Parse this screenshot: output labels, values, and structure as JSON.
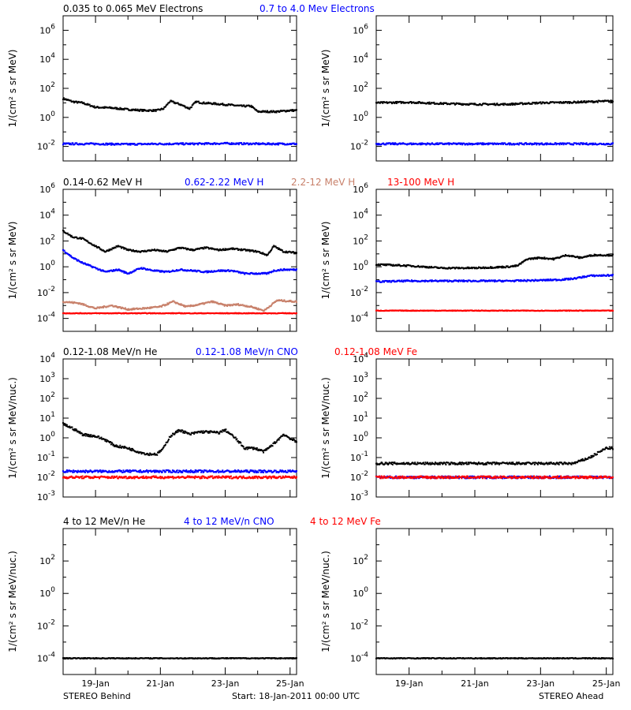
{
  "footer": {
    "left": "STEREO Behind",
    "center": "Start: 18-Jan-2011 00:00 UTC",
    "right": "STEREO Ahead"
  },
  "x_axis": {
    "range_days": [
      18,
      25.2
    ],
    "ticks": [
      {
        "day": 19,
        "label": "19-Jan"
      },
      {
        "day": 21,
        "label": "21-Jan"
      },
      {
        "day": 23,
        "label": "23-Jan"
      },
      {
        "day": 25,
        "label": "25-Jan"
      }
    ]
  },
  "colors": {
    "black": "#000000",
    "blue": "#0000ff",
    "tan": "#c8806a",
    "red": "#ff0000"
  },
  "chart_data": [
    {
      "id": "electrons",
      "type": "scatter",
      "log_y": true,
      "ylabel": "1/(cm² s sr MeV)",
      "ylim_exp": [
        -3,
        7
      ],
      "yticks": [
        {
          "exp": -2,
          "label_base": "10",
          "label_exp": "-2"
        },
        {
          "exp": 0,
          "label_base": "10",
          "label_exp": "0"
        },
        {
          "exp": 2,
          "label_base": "10",
          "label_exp": "2"
        },
        {
          "exp": 4,
          "label_base": "10",
          "label_exp": "4"
        },
        {
          "exp": 6,
          "label_base": "10",
          "label_exp": "6"
        }
      ],
      "legend": [
        {
          "text": "0.035 to 0.065 MeV Electrons",
          "color": "#000000"
        },
        {
          "text": "0.7 to 4.0 Mev Electrons",
          "color": "#0000ff"
        }
      ],
      "behind": [
        {
          "color": "#000000",
          "x": [
            18.0,
            18.3,
            18.6,
            19.0,
            19.5,
            20.0,
            20.5,
            20.9,
            21.1,
            21.3,
            21.6,
            21.9,
            22.1,
            22.3,
            22.6,
            22.9,
            23.2,
            23.5,
            23.8,
            24.0,
            24.3,
            24.6,
            25.0,
            25.2
          ],
          "y": [
            20,
            12,
            10,
            5,
            4.5,
            3.5,
            3,
            3,
            4,
            13,
            8,
            4,
            12,
            10,
            9,
            8,
            7,
            6,
            6,
            2.5,
            2.5,
            2.5,
            3,
            3
          ]
        },
        {
          "color": "#0000ff",
          "x": [
            18.0,
            19.0,
            20.0,
            21.0,
            22.0,
            23.0,
            24.0,
            25.0,
            25.2
          ],
          "y": [
            0.015,
            0.015,
            0.014,
            0.015,
            0.015,
            0.016,
            0.015,
            0.015,
            0.015
          ]
        }
      ],
      "ahead": [
        {
          "color": "#000000",
          "x": [
            18.0,
            19.0,
            20.0,
            21.0,
            22.0,
            23.0,
            24.0,
            25.0,
            25.2
          ],
          "y": [
            10,
            11,
            9,
            8,
            8,
            10,
            11,
            13,
            13
          ]
        },
        {
          "color": "#0000ff",
          "x": [
            18.0,
            19.0,
            20.0,
            21.0,
            22.0,
            23.0,
            24.0,
            25.0,
            25.2
          ],
          "y": [
            0.015,
            0.015,
            0.015,
            0.015,
            0.015,
            0.015,
            0.015,
            0.015,
            0.015
          ]
        }
      ]
    },
    {
      "id": "protons",
      "type": "scatter",
      "log_y": true,
      "ylabel": "1/(cm² s sr MeV)",
      "ylim_exp": [
        -5,
        6
      ],
      "yticks": [
        {
          "exp": -4,
          "label_base": "10",
          "label_exp": "-4"
        },
        {
          "exp": -2,
          "label_base": "10",
          "label_exp": "-2"
        },
        {
          "exp": 0,
          "label_base": "10",
          "label_exp": "0"
        },
        {
          "exp": 2,
          "label_base": "10",
          "label_exp": "2"
        },
        {
          "exp": 4,
          "label_base": "10",
          "label_exp": "4"
        },
        {
          "exp": 6,
          "label_base": "10",
          "label_exp": "6"
        }
      ],
      "legend": [
        {
          "text": "0.14-0.62 MeV H",
          "color": "#000000"
        },
        {
          "text": "0.62-2.22 MeV H",
          "color": "#0000ff"
        },
        {
          "text": "2.2-12 MeV H",
          "color": "#c8806a"
        },
        {
          "text": "13-100 MeV H",
          "color": "#ff0000"
        }
      ],
      "behind": [
        {
          "color": "#000000",
          "x": [
            18.0,
            18.3,
            18.6,
            19.0,
            19.3,
            19.7,
            20.0,
            20.4,
            20.8,
            21.2,
            21.6,
            22.0,
            22.4,
            22.8,
            23.2,
            23.6,
            24.0,
            24.3,
            24.5,
            24.8,
            25.2
          ],
          "y": [
            600,
            200,
            150,
            40,
            15,
            40,
            20,
            15,
            20,
            15,
            30,
            20,
            30,
            20,
            25,
            20,
            15,
            8,
            40,
            15,
            12
          ]
        },
        {
          "color": "#0000ff",
          "x": [
            18.0,
            18.3,
            18.6,
            19.0,
            19.3,
            19.7,
            20.0,
            20.4,
            20.8,
            21.2,
            21.6,
            22.0,
            22.4,
            22.8,
            23.2,
            23.6,
            24.0,
            24.3,
            24.5,
            24.8,
            25.2
          ],
          "y": [
            20,
            5,
            2,
            0.8,
            0.4,
            0.6,
            0.3,
            0.8,
            0.5,
            0.4,
            0.6,
            0.5,
            0.4,
            0.5,
            0.5,
            0.3,
            0.3,
            0.3,
            0.5,
            0.6,
            0.6
          ]
        },
        {
          "color": "#c8806a",
          "x": [
            18.0,
            18.5,
            19.0,
            19.5,
            20.0,
            20.5,
            21.0,
            21.4,
            21.8,
            22.2,
            22.6,
            23.0,
            23.4,
            23.8,
            24.2,
            24.6,
            25.2
          ],
          "y": [
            0.002,
            0.0015,
            0.0006,
            0.001,
            0.0005,
            0.0006,
            0.0008,
            0.002,
            0.0008,
            0.0012,
            0.002,
            0.001,
            0.0012,
            0.0008,
            0.0004,
            0.0025,
            0.002
          ]
        },
        {
          "color": "#ff0000",
          "x": [
            18.0,
            19.0,
            20.0,
            21.0,
            22.0,
            23.0,
            24.0,
            25.0,
            25.2
          ],
          "y": [
            0.00025,
            0.00025,
            0.00025,
            0.00025,
            0.00025,
            0.00025,
            0.00025,
            0.00025,
            0.00025
          ]
        }
      ],
      "ahead": [
        {
          "color": "#000000",
          "x": [
            18.0,
            19.0,
            20.0,
            21.0,
            22.0,
            22.3,
            22.6,
            23.0,
            23.4,
            23.8,
            24.2,
            24.6,
            25.2
          ],
          "y": [
            1.5,
            1.2,
            0.8,
            0.8,
            1.0,
            1.2,
            4,
            5,
            4,
            8,
            5,
            8,
            8
          ]
        },
        {
          "color": "#0000ff",
          "x": [
            18.0,
            19.0,
            20.0,
            21.0,
            22.0,
            23.0,
            23.6,
            24.0,
            24.5,
            25.2
          ],
          "y": [
            0.07,
            0.08,
            0.08,
            0.08,
            0.08,
            0.09,
            0.1,
            0.12,
            0.2,
            0.22
          ]
        },
        {
          "color": "#ff0000",
          "x": [
            18.0,
            19.0,
            20.0,
            21.0,
            22.0,
            23.0,
            24.0,
            25.0,
            25.2
          ],
          "y": [
            0.0004,
            0.0004,
            0.0004,
            0.0004,
            0.0004,
            0.0004,
            0.0004,
            0.0004,
            0.0004
          ]
        }
      ]
    },
    {
      "id": "heavy_low",
      "type": "scatter",
      "log_y": true,
      "ylabel": "1/(cm² s sr MeV/nuc.)",
      "ylim_exp": [
        -3,
        4
      ],
      "yticks": [
        {
          "exp": -3,
          "label_base": "10",
          "label_exp": "-3"
        },
        {
          "exp": -2,
          "label_base": "10",
          "label_exp": "-2"
        },
        {
          "exp": -1,
          "label_base": "10",
          "label_exp": "-1"
        },
        {
          "exp": 0,
          "label_base": "10",
          "label_exp": "0"
        },
        {
          "exp": 1,
          "label_base": "10",
          "label_exp": "1"
        },
        {
          "exp": 2,
          "label_base": "10",
          "label_exp": "2"
        },
        {
          "exp": 3,
          "label_base": "10",
          "label_exp": "3"
        },
        {
          "exp": 4,
          "label_base": "10",
          "label_exp": "4"
        }
      ],
      "legend": [
        {
          "text": "0.12-1.08 MeV/n He",
          "color": "#000000"
        },
        {
          "text": "0.12-1.08 MeV/n CNO",
          "color": "#0000ff"
        },
        {
          "text": "0.12-1.08 MeV Fe",
          "color": "#ff0000"
        }
      ],
      "behind": [
        {
          "color": "#000000",
          "x": [
            18.0,
            18.3,
            18.6,
            19.0,
            19.3,
            19.6,
            20.0,
            20.3,
            20.6,
            20.9,
            21.1,
            21.3,
            21.6,
            21.9,
            22.2,
            22.5,
            22.8,
            23.0,
            23.3,
            23.6,
            23.9,
            24.2,
            24.5,
            24.8,
            25.2
          ],
          "y": [
            5,
            3,
            1.5,
            1.2,
            0.8,
            0.4,
            0.3,
            0.2,
            0.15,
            0.15,
            0.3,
            1.2,
            2.5,
            1.5,
            2.0,
            2.0,
            1.8,
            2.5,
            1.0,
            0.3,
            0.3,
            0.2,
            0.5,
            1.5,
            0.6
          ]
        },
        {
          "color": "#0000ff",
          "x": [
            18.0,
            19.0,
            20.0,
            21.0,
            22.0,
            23.0,
            24.0,
            25.0,
            25.2
          ],
          "y": [
            0.02,
            0.02,
            0.02,
            0.02,
            0.02,
            0.02,
            0.02,
            0.02,
            0.02
          ]
        },
        {
          "color": "#ff0000",
          "x": [
            18.0,
            19.0,
            20.0,
            21.0,
            22.0,
            23.0,
            24.0,
            25.0,
            25.2
          ],
          "y": [
            0.01,
            0.01,
            0.01,
            0.01,
            0.01,
            0.01,
            0.01,
            0.01,
            0.01
          ]
        }
      ],
      "ahead": [
        {
          "color": "#000000",
          "x": [
            18.0,
            19.0,
            20.0,
            21.0,
            22.0,
            23.0,
            24.0,
            24.5,
            25.0,
            25.2
          ],
          "y": [
            0.05,
            0.05,
            0.05,
            0.05,
            0.05,
            0.05,
            0.05,
            0.1,
            0.3,
            0.3
          ]
        },
        {
          "color": "#0000ff",
          "x": [
            18.0,
            19.0,
            20.0,
            21.0,
            22.0,
            23.0,
            24.0,
            25.0,
            25.2
          ],
          "y": [
            0.01,
            0.01,
            0.01,
            0.01,
            0.01,
            0.01,
            0.01,
            0.01,
            0.01
          ]
        },
        {
          "color": "#ff0000",
          "x": [
            18.0,
            19.0,
            20.0,
            21.0,
            22.0,
            23.0,
            24.0,
            25.0,
            25.2
          ],
          "y": [
            0.01,
            0.01,
            0.01,
            0.01,
            0.01,
            0.01,
            0.01,
            0.01,
            0.01
          ]
        }
      ]
    },
    {
      "id": "heavy_high",
      "type": "scatter",
      "log_y": true,
      "ylabel": "1/(cm² s sr MeV/nuc.)",
      "ylim_exp": [
        -5,
        4
      ],
      "yticks": [
        {
          "exp": -4,
          "label_base": "10",
          "label_exp": "-4"
        },
        {
          "exp": -2,
          "label_base": "10",
          "label_exp": "-2"
        },
        {
          "exp": 0,
          "label_base": "10",
          "label_exp": "0"
        },
        {
          "exp": 2,
          "label_base": "10",
          "label_exp": "2"
        }
      ],
      "legend": [
        {
          "text": "4 to 12 MeV/n He",
          "color": "#000000"
        },
        {
          "text": "4 to 12 MeV/n CNO",
          "color": "#0000ff"
        },
        {
          "text": "4 to 12 MeV Fe",
          "color": "#ff0000"
        }
      ],
      "behind": [
        {
          "color": "#000000",
          "x": [
            18.0,
            19.0,
            20.0,
            21.0,
            22.0,
            23.0,
            24.0,
            25.0,
            25.2
          ],
          "y": [
            0.0001,
            0.0001,
            0.0001,
            0.0001,
            0.0001,
            0.0001,
            0.0001,
            0.0001,
            0.0001
          ]
        }
      ],
      "ahead": [
        {
          "color": "#000000",
          "x": [
            18.0,
            19.0,
            20.0,
            21.0,
            22.0,
            23.0,
            24.0,
            25.0,
            25.2
          ],
          "y": [
            0.0001,
            0.0001,
            0.0001,
            0.0001,
            0.0001,
            0.0001,
            0.0001,
            0.0001,
            0.0001
          ]
        }
      ]
    }
  ]
}
